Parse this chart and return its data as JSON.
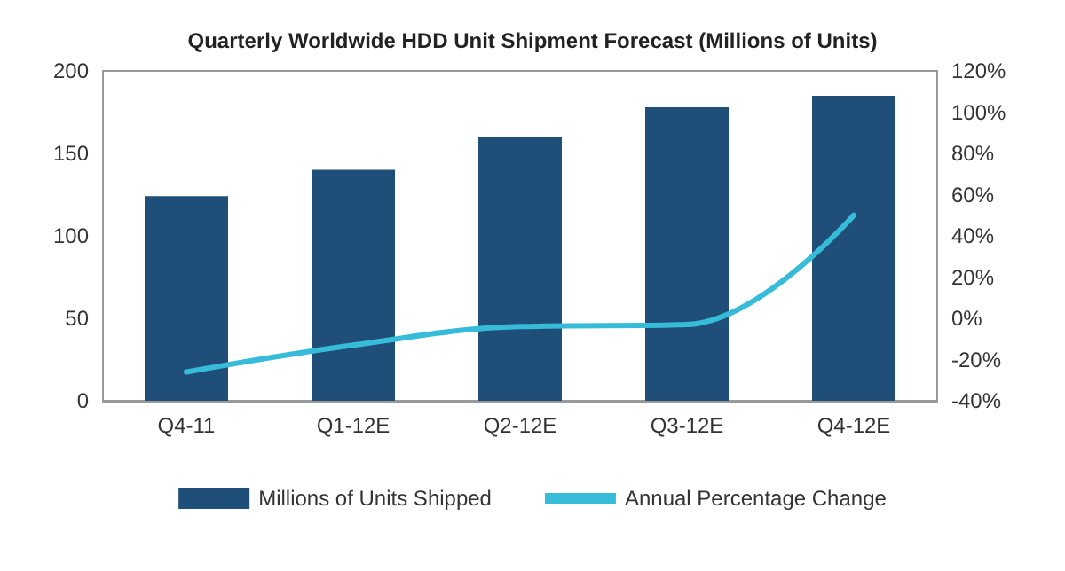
{
  "chart_data": {
    "type": "bar",
    "title": "Quarterly Worldwide HDD Unit Shipment Forecast (Millions of Units)",
    "categories": [
      "Q4-11",
      "Q1-12E",
      "Q2-12E",
      "Q3-12E",
      "Q4-12E"
    ],
    "series": [
      {
        "name": "Millions of Units Shipped",
        "color": "#1f4e79",
        "values": [
          124,
          140,
          160,
          178,
          185
        ]
      },
      {
        "name": "Annual Percentage Change",
        "type": "line",
        "axis": "y2",
        "color": "#36bcd8",
        "values": [
          -26,
          -13,
          -4,
          -3,
          50
        ]
      }
    ],
    "ylim": [
      0,
      200
    ],
    "yticks": [
      0,
      50,
      100,
      150,
      200
    ],
    "y2lim": [
      -40,
      120
    ],
    "y2ticks": [
      {
        "value": -40,
        "label": "-40%"
      },
      {
        "value": -20,
        "label": "-20%"
      },
      {
        "value": 0,
        "label": "0%"
      },
      {
        "value": 20,
        "label": "20%"
      },
      {
        "value": 40,
        "label": "40%"
      },
      {
        "value": 60,
        "label": "60%"
      },
      {
        "value": 80,
        "label": "80%"
      },
      {
        "value": 100,
        "label": "100%"
      },
      {
        "value": 120,
        "label": "120%"
      }
    ],
    "grid": false,
    "legend": "bottom",
    "marker": "none",
    "line_style": "solid"
  }
}
